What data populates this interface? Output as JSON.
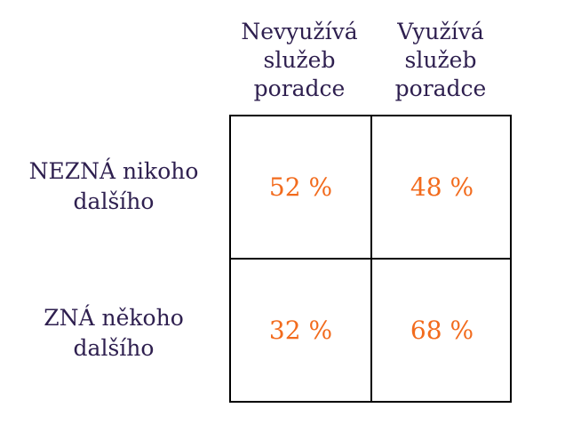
{
  "chart_data": {
    "type": "table",
    "columns": [
      {
        "lines": [
          "Nevyužívá",
          "služeb",
          "poradce"
        ]
      },
      {
        "lines": [
          "Využívá",
          "služeb",
          "poradce"
        ]
      }
    ],
    "rows": [
      {
        "lines": [
          "NEZNÁ nikoho",
          "dalšího"
        ],
        "values": [
          52,
          48
        ],
        "labels": [
          "52 %",
          "48 %"
        ]
      },
      {
        "lines": [
          "ZNÁ někoho",
          "dalšího"
        ],
        "values": [
          32,
          68
        ],
        "labels": [
          "32 %",
          "68 %"
        ]
      }
    ],
    "colors": {
      "header_text": "#2e1f4f",
      "value_text": "#f26b1d",
      "border": "#000000"
    }
  }
}
